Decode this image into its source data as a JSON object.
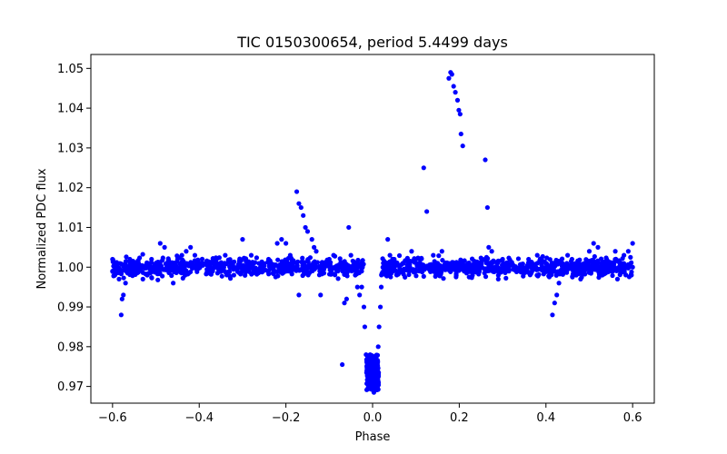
{
  "chart_data": {
    "type": "scatter",
    "title": "TIC 0150300654, period 5.4499 days",
    "xlabel": "Phase",
    "ylabel": "Normalized PDC flux",
    "xlim": [
      -0.65,
      0.65
    ],
    "ylim": [
      0.9658,
      1.0535
    ],
    "xticks": [
      -0.6,
      -0.4,
      -0.2,
      0.0,
      0.2,
      0.4,
      0.6
    ],
    "xtick_labels": [
      "−0.6",
      "−0.4",
      "−0.2",
      "0.0",
      "0.2",
      "0.4",
      "0.6"
    ],
    "yticks": [
      0.97,
      0.98,
      0.99,
      1.0,
      1.01,
      1.02,
      1.03,
      1.04,
      1.05
    ],
    "ytick_labels": [
      "0.97",
      "0.98",
      "0.99",
      "1.00",
      "1.01",
      "1.02",
      "1.03",
      "1.04",
      "1.05"
    ],
    "grid": false,
    "marker_color": "#0000ff",
    "series": [
      {
        "points": [
          [
            -0.6,
            1.002
          ],
          [
            -0.6,
            0.999
          ],
          [
            -0.59,
            1.001
          ],
          [
            -0.585,
            0.997
          ],
          [
            -0.58,
            0.988
          ],
          [
            -0.578,
            0.992
          ],
          [
            -0.575,
            0.993
          ],
          [
            -0.57,
            0.996
          ],
          [
            -0.56,
            1.002
          ],
          [
            -0.55,
            0.999
          ],
          [
            -0.54,
            1.001
          ],
          [
            -0.53,
            0.997
          ],
          [
            -0.52,
            0.998
          ],
          [
            -0.51,
            1.002
          ],
          [
            -0.5,
            1.001
          ],
          [
            -0.49,
            1.006
          ],
          [
            -0.48,
            1.005
          ],
          [
            -0.47,
            0.999
          ],
          [
            -0.46,
            0.996
          ],
          [
            -0.45,
            1.002
          ],
          [
            -0.44,
            1.003
          ],
          [
            -0.43,
            1.004
          ],
          [
            -0.42,
            1.005
          ],
          [
            -0.41,
            1.003
          ],
          [
            -0.4,
            1.0
          ],
          [
            -0.38,
            1.001
          ],
          [
            -0.36,
            1.002
          ],
          [
            -0.34,
            1.003
          ],
          [
            -0.32,
            0.998
          ],
          [
            -0.3,
            1.007
          ],
          [
            -0.28,
            1.003
          ],
          [
            -0.26,
            0.999
          ],
          [
            -0.24,
            1.002
          ],
          [
            -0.22,
            1.006
          ],
          [
            -0.21,
            1.007
          ],
          [
            -0.2,
            1.006
          ],
          [
            -0.19,
            1.003
          ],
          [
            -0.175,
            1.019
          ],
          [
            -0.17,
            1.016
          ],
          [
            -0.165,
            1.015
          ],
          [
            -0.16,
            1.013
          ],
          [
            -0.155,
            1.01
          ],
          [
            -0.15,
            1.009
          ],
          [
            -0.14,
            1.007
          ],
          [
            -0.135,
            1.005
          ],
          [
            -0.13,
            1.004
          ],
          [
            -0.17,
            0.993
          ],
          [
            -0.12,
            0.993
          ],
          [
            -0.1,
            1.002
          ],
          [
            -0.09,
            1.003
          ],
          [
            -0.08,
            0.999
          ],
          [
            -0.07,
            0.9755
          ],
          [
            -0.065,
            0.991
          ],
          [
            -0.06,
            0.992
          ],
          [
            -0.055,
            1.01
          ],
          [
            -0.05,
            1.003
          ],
          [
            -0.04,
            0.998
          ],
          [
            -0.035,
            0.995
          ],
          [
            -0.03,
            0.993
          ],
          [
            -0.025,
            0.995
          ],
          [
            -0.02,
            0.99
          ],
          [
            -0.018,
            0.985
          ],
          [
            -0.015,
            0.978
          ],
          [
            -0.013,
            0.975
          ],
          [
            -0.01,
            0.972
          ],
          [
            -0.008,
            0.97
          ],
          [
            -0.005,
            0.972
          ],
          [
            -0.003,
            0.9695
          ],
          [
            0.0,
            0.973
          ],
          [
            0.003,
            0.9685
          ],
          [
            0.005,
            0.971
          ],
          [
            0.008,
            0.974
          ],
          [
            0.01,
            0.976
          ],
          [
            0.013,
            0.98
          ],
          [
            0.015,
            0.985
          ],
          [
            0.018,
            0.99
          ],
          [
            0.02,
            0.995
          ],
          [
            0.025,
            1.001
          ],
          [
            0.035,
            1.007
          ],
          [
            0.04,
            1.003
          ],
          [
            0.05,
            1.002
          ],
          [
            0.06,
            0.999
          ],
          [
            0.07,
            1.001
          ],
          [
            0.08,
            1.002
          ],
          [
            0.09,
            1.004
          ],
          [
            0.1,
            1.002
          ],
          [
            0.118,
            1.025
          ],
          [
            0.125,
            1.014
          ],
          [
            0.13,
            1.0
          ],
          [
            0.14,
            1.003
          ],
          [
            0.15,
            1.001
          ],
          [
            0.16,
            1.004
          ],
          [
            0.176,
            1.0475
          ],
          [
            0.18,
            1.049
          ],
          [
            0.183,
            1.0485
          ],
          [
            0.187,
            1.0455
          ],
          [
            0.191,
            1.044
          ],
          [
            0.196,
            1.042
          ],
          [
            0.199,
            1.0395
          ],
          [
            0.202,
            1.0385
          ],
          [
            0.204,
            1.0335
          ],
          [
            0.208,
            1.0305
          ],
          [
            0.22,
            1.001
          ],
          [
            0.24,
            0.999
          ],
          [
            0.26,
            1.027
          ],
          [
            0.265,
            1.015
          ],
          [
            0.268,
            1.005
          ],
          [
            0.275,
            1.004
          ],
          [
            0.29,
            0.997
          ],
          [
            0.3,
            1.002
          ],
          [
            0.32,
            1.001
          ],
          [
            0.34,
            0.999
          ],
          [
            0.36,
            1.002
          ],
          [
            0.38,
            1.003
          ],
          [
            0.39,
            1.002
          ],
          [
            0.4,
            1.001
          ],
          [
            0.41,
            0.999
          ],
          [
            0.415,
            0.988
          ],
          [
            0.42,
            0.991
          ],
          [
            0.425,
            0.993
          ],
          [
            0.43,
            0.996
          ],
          [
            0.44,
            0.999
          ],
          [
            0.45,
            1.003
          ],
          [
            0.46,
            1.002
          ],
          [
            0.47,
            0.998
          ],
          [
            0.48,
            0.997
          ],
          [
            0.49,
            1.001
          ],
          [
            0.5,
            1.004
          ],
          [
            0.51,
            1.006
          ],
          [
            0.52,
            1.005
          ],
          [
            0.53,
            0.998
          ],
          [
            0.54,
            1.002
          ],
          [
            0.55,
            0.999
          ],
          [
            0.56,
            1.004
          ],
          [
            0.565,
            0.997
          ],
          [
            0.57,
            1.001
          ],
          [
            0.58,
            1.003
          ],
          [
            0.59,
            1.004
          ],
          [
            0.6,
            1.006
          ],
          [
            0.6,
            1.0
          ]
        ]
      }
    ],
    "dense_baseline": {
      "x_range": [
        -0.6,
        0.6
      ],
      "y_center": 1.0,
      "y_spread": 0.0022,
      "gap_x_range": [
        -0.02,
        0.02
      ]
    },
    "dense_dip": {
      "x_range": [
        -0.014,
        0.014
      ],
      "y_range": [
        0.969,
        0.978
      ]
    }
  }
}
